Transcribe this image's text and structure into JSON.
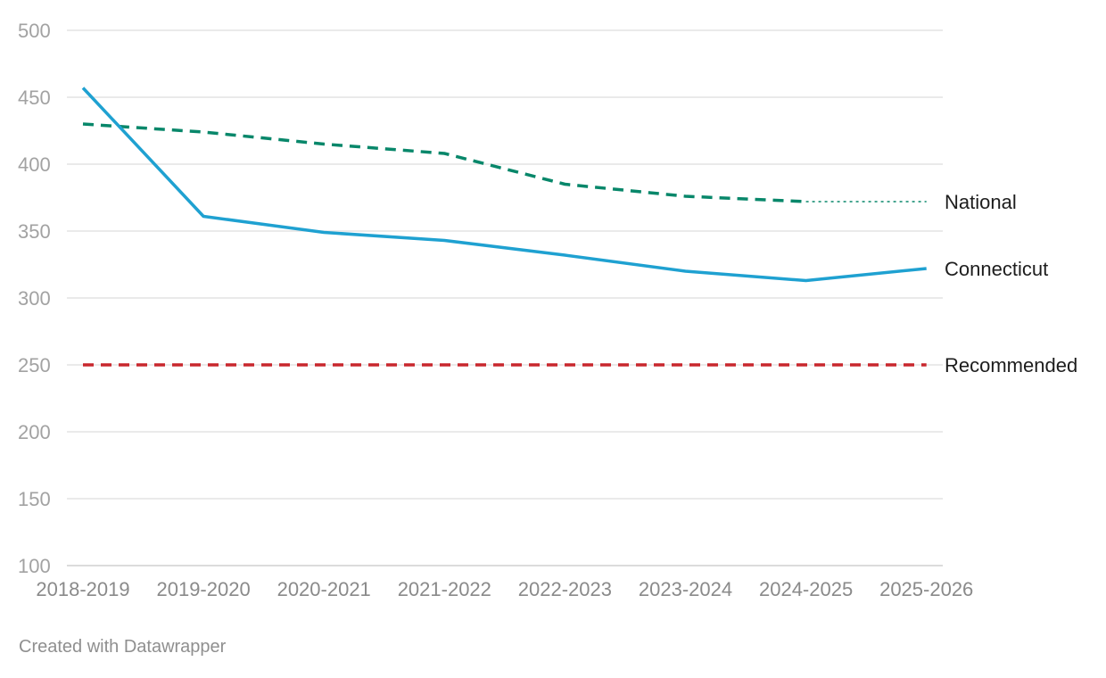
{
  "footer": {
    "credit": "Created with Datawrapper"
  },
  "chart_data": {
    "type": "line",
    "categories": [
      "2018-2019",
      "2019-2020",
      "2020-2021",
      "2021-2022",
      "2022-2023",
      "2023-2024",
      "2024-2025",
      "2025-2026"
    ],
    "ylim": [
      100,
      500
    ],
    "yticks": [
      100,
      150,
      200,
      250,
      300,
      350,
      400,
      450,
      500
    ],
    "grid": true,
    "title": "",
    "xlabel": "",
    "ylabel": "",
    "series": [
      {
        "name": "National",
        "color": "#08876a",
        "style": "dashed",
        "values": [
          430,
          424,
          415,
          408,
          385,
          376,
          372,
          null
        ],
        "projection": {
          "style": "dotted",
          "values": [
            null,
            null,
            null,
            null,
            null,
            null,
            372,
            372
          ]
        }
      },
      {
        "name": "Connecticut",
        "color": "#1fa1d1",
        "style": "solid",
        "values": [
          457,
          361,
          349,
          343,
          332,
          320,
          313,
          322
        ]
      },
      {
        "name": "Recommended",
        "color": "#c8272d",
        "style": "dashed",
        "values": [
          250,
          250,
          250,
          250,
          250,
          250,
          250,
          250
        ]
      }
    ]
  }
}
